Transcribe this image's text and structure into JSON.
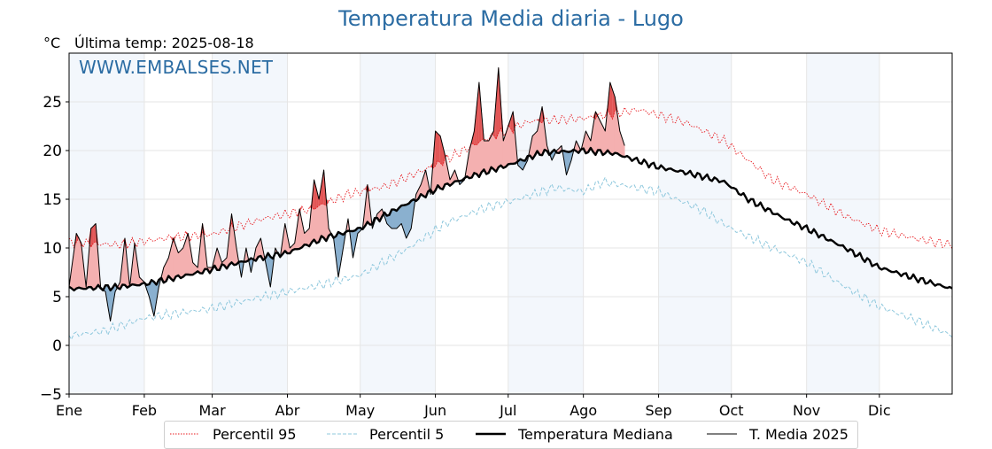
{
  "page": {
    "title": "Temperatura Media diaria - Lugo",
    "unit": "°C",
    "last_temp": "Última temp: 2025-08-18",
    "watermark": "WWW.EMBALSES.NET"
  },
  "chart_data": {
    "type": "line",
    "title": "Temperatura Media diaria - Lugo",
    "ylabel": "°C",
    "ylim": [
      -5,
      30
    ],
    "xlim": [
      0,
      364
    ],
    "yticks": [
      -5,
      0,
      5,
      10,
      15,
      20,
      25
    ],
    "ytick_labels": [
      "−5",
      "0",
      "5",
      "10",
      "15",
      "20",
      "25"
    ],
    "months": [
      "Ene",
      "Feb",
      "Mar",
      "Abr",
      "May",
      "Jun",
      "Jul",
      "Ago",
      "Sep",
      "Oct",
      "Nov",
      "Dic"
    ],
    "month_start_days": [
      0,
      31,
      59,
      90,
      120,
      151,
      181,
      212,
      243,
      273,
      304,
      334
    ],
    "grid": true,
    "legend_position": "bottom",
    "last_day": 229,
    "colors": {
      "p95": "#e8191e",
      "p5": "#8fc8dd",
      "median": "#000000",
      "actual": "#000000",
      "above_fill": "#f4b0b0",
      "above_peak": "#e25555",
      "below_fill": "#8ab0cf",
      "month_band": "#f3f7fc"
    },
    "series": [
      {
        "name": "Percentil 95",
        "style": "dotted",
        "anchors": [
          [
            0,
            10.6
          ],
          [
            20,
            10.3
          ],
          [
            40,
            11.0
          ],
          [
            59,
            11.4
          ],
          [
            80,
            13.0
          ],
          [
            100,
            14.0
          ],
          [
            115,
            15.5
          ],
          [
            130,
            16.3
          ],
          [
            151,
            18.5
          ],
          [
            170,
            21.0
          ],
          [
            190,
            23.0
          ],
          [
            212,
            23.3
          ],
          [
            235,
            24.2
          ],
          [
            255,
            22.8
          ],
          [
            270,
            21.0
          ],
          [
            290,
            17.0
          ],
          [
            304,
            15.5
          ],
          [
            320,
            13.3
          ],
          [
            334,
            11.8
          ],
          [
            350,
            10.9
          ],
          [
            364,
            10.3
          ]
        ]
      },
      {
        "name": "Percentil 5",
        "style": "dashed",
        "anchors": [
          [
            0,
            1.0
          ],
          [
            15,
            1.5
          ],
          [
            31,
            2.8
          ],
          [
            59,
            3.8
          ],
          [
            80,
            5.0
          ],
          [
            100,
            6.0
          ],
          [
            120,
            7.2
          ],
          [
            140,
            10.0
          ],
          [
            155,
            12.5
          ],
          [
            170,
            14.0
          ],
          [
            185,
            15.0
          ],
          [
            200,
            16.2
          ],
          [
            212,
            15.8
          ],
          [
            220,
            16.8
          ],
          [
            243,
            15.8
          ],
          [
            260,
            14.0
          ],
          [
            273,
            12.0
          ],
          [
            290,
            10.0
          ],
          [
            304,
            8.5
          ],
          [
            320,
            6.0
          ],
          [
            334,
            4.0
          ],
          [
            350,
            2.5
          ],
          [
            364,
            1.0
          ]
        ]
      },
      {
        "name": "Temperatura Mediana",
        "style": "thick",
        "anchors": [
          [
            0,
            5.8
          ],
          [
            20,
            6.0
          ],
          [
            31,
            6.3
          ],
          [
            45,
            7.0
          ],
          [
            59,
            7.8
          ],
          [
            75,
            8.8
          ],
          [
            90,
            9.5
          ],
          [
            105,
            11.0
          ],
          [
            120,
            12.0
          ],
          [
            135,
            14.0
          ],
          [
            151,
            16.0
          ],
          [
            165,
            17.3
          ],
          [
            181,
            18.5
          ],
          [
            195,
            19.8
          ],
          [
            212,
            20.0
          ],
          [
            225,
            19.7
          ],
          [
            243,
            18.3
          ],
          [
            255,
            17.7
          ],
          [
            270,
            16.8
          ],
          [
            280,
            15.0
          ],
          [
            295,
            13.0
          ],
          [
            304,
            12.0
          ],
          [
            320,
            10.0
          ],
          [
            334,
            8.0
          ],
          [
            350,
            6.8
          ],
          [
            364,
            5.8
          ]
        ]
      },
      {
        "name": "T. Media 2025",
        "style": "thin",
        "anchors": [
          [
            0,
            6.0
          ],
          [
            3,
            11.5
          ],
          [
            5,
            10.5
          ],
          [
            7,
            6.0
          ],
          [
            9,
            12.0
          ],
          [
            11,
            12.5
          ],
          [
            13,
            6.0
          ],
          [
            15,
            5.5
          ],
          [
            17,
            2.5
          ],
          [
            19,
            5.5
          ],
          [
            21,
            6.5
          ],
          [
            23,
            11.0
          ],
          [
            25,
            6.0
          ],
          [
            27,
            10.5
          ],
          [
            29,
            7.0
          ],
          [
            31,
            6.5
          ],
          [
            33,
            5.0
          ],
          [
            35,
            3.0
          ],
          [
            37,
            6.0
          ],
          [
            39,
            8.0
          ],
          [
            41,
            9.0
          ],
          [
            43,
            11.0
          ],
          [
            45,
            9.5
          ],
          [
            47,
            10.0
          ],
          [
            49,
            11.5
          ],
          [
            51,
            8.5
          ],
          [
            53,
            8.0
          ],
          [
            55,
            12.5
          ],
          [
            57,
            8.0
          ],
          [
            59,
            8.0
          ],
          [
            61,
            10.0
          ],
          [
            63,
            8.5
          ],
          [
            65,
            9.0
          ],
          [
            67,
            13.5
          ],
          [
            69,
            10.0
          ],
          [
            71,
            7.0
          ],
          [
            73,
            10.0
          ],
          [
            75,
            7.5
          ],
          [
            77,
            10.0
          ],
          [
            79,
            11.0
          ],
          [
            81,
            8.5
          ],
          [
            83,
            6.0
          ],
          [
            85,
            10.0
          ],
          [
            87,
            9.0
          ],
          [
            89,
            12.5
          ],
          [
            91,
            10.0
          ],
          [
            93,
            10.5
          ],
          [
            95,
            14.0
          ],
          [
            97,
            11.5
          ],
          [
            99,
            12.0
          ],
          [
            101,
            17.0
          ],
          [
            103,
            15.0
          ],
          [
            105,
            18.0
          ],
          [
            107,
            12.0
          ],
          [
            109,
            11.0
          ],
          [
            111,
            7.0
          ],
          [
            113,
            10.0
          ],
          [
            115,
            13.0
          ],
          [
            117,
            9.0
          ],
          [
            119,
            11.5
          ],
          [
            121,
            12.0
          ],
          [
            123,
            16.5
          ],
          [
            125,
            12.0
          ],
          [
            127,
            13.5
          ],
          [
            129,
            14.0
          ],
          [
            131,
            12.5
          ],
          [
            133,
            12.0
          ],
          [
            135,
            12.0
          ],
          [
            137,
            12.5
          ],
          [
            139,
            11.0
          ],
          [
            141,
            12.0
          ],
          [
            143,
            15.5
          ],
          [
            145,
            16.5
          ],
          [
            147,
            18.0
          ],
          [
            149,
            15.5
          ],
          [
            151,
            22.0
          ],
          [
            153,
            21.5
          ],
          [
            155,
            19.5
          ],
          [
            157,
            17.0
          ],
          [
            159,
            18.0
          ],
          [
            161,
            16.5
          ],
          [
            163,
            17.0
          ],
          [
            165,
            20.0
          ],
          [
            167,
            22.0
          ],
          [
            169,
            27.0
          ],
          [
            171,
            21.0
          ],
          [
            173,
            21.0
          ],
          [
            175,
            22.0
          ],
          [
            177,
            28.5
          ],
          [
            179,
            21.0
          ],
          [
            181,
            22.5
          ],
          [
            183,
            24.0
          ],
          [
            185,
            18.5
          ],
          [
            187,
            18.0
          ],
          [
            189,
            19.0
          ],
          [
            191,
            21.5
          ],
          [
            193,
            22.0
          ],
          [
            195,
            24.5
          ],
          [
            197,
            20.5
          ],
          [
            199,
            19.0
          ],
          [
            201,
            20.0
          ],
          [
            203,
            20.5
          ],
          [
            205,
            17.5
          ],
          [
            207,
            19.0
          ],
          [
            209,
            21.0
          ],
          [
            211,
            20.0
          ],
          [
            213,
            22.0
          ],
          [
            215,
            21.0
          ],
          [
            217,
            24.0
          ],
          [
            219,
            23.0
          ],
          [
            221,
            22.0
          ],
          [
            223,
            27.0
          ],
          [
            225,
            25.5
          ],
          [
            227,
            22.0
          ],
          [
            229,
            20.5
          ]
        ]
      }
    ]
  },
  "legend": {
    "p95": "Percentil 95",
    "p5": "Percentil 5",
    "median": "Temperatura Mediana",
    "actual": "T. Media 2025"
  }
}
